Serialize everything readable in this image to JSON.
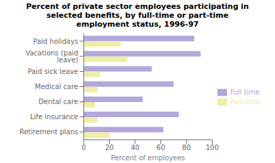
{
  "chart_data": {
    "type": "bar",
    "orientation": "horizontal",
    "title": "Percent of private sector employees participating in\nselected benefits, by full-time or part-time\nemployment status, 1996-97",
    "categories": [
      "Retirement plans",
      "Life insurance",
      "Dental care",
      "Medical care",
      "Paid sick leave",
      "Vacations (paid leave)",
      "Paid holidays"
    ],
    "series": [
      {
        "name": "Full time",
        "color": "#b3a8d8",
        "values": [
          62,
          74,
          46,
          70,
          53,
          91,
          86
        ]
      },
      {
        "name": "Part time",
        "color": "#eeeeaa",
        "values": [
          20,
          11,
          9,
          11,
          13,
          34,
          29
        ]
      }
    ],
    "xlabel": "Percent of employees",
    "xlim": [
      0,
      100
    ],
    "xticks": [
      0,
      20,
      40,
      60,
      80,
      100
    ],
    "grid": false,
    "legend": "right"
  }
}
